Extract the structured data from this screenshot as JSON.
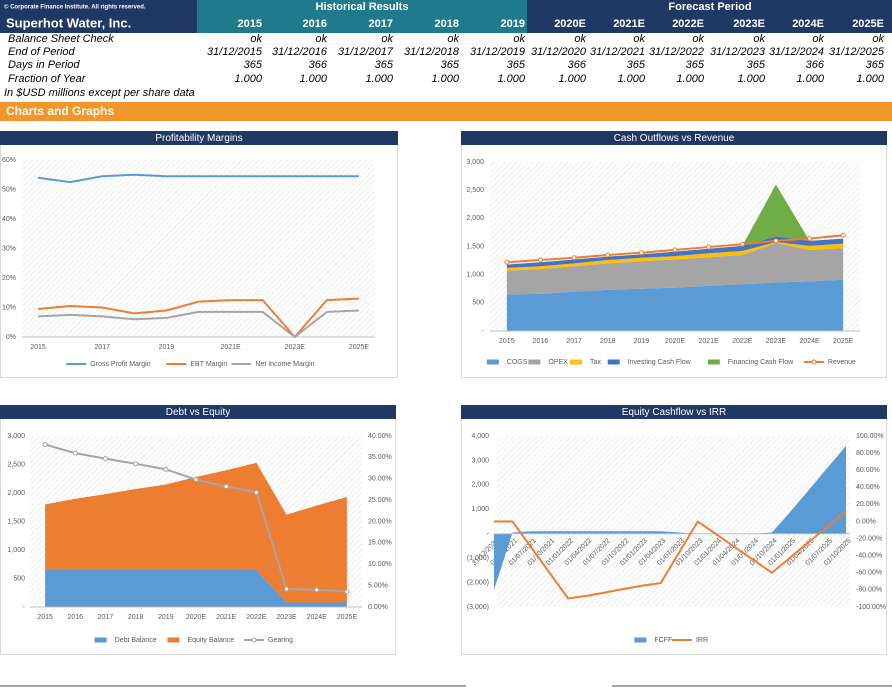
{
  "header": {
    "copyright": "© Corporate Finance Institute. All rights reserved.",
    "historical": "Historical Results",
    "forecast": "Forecast Period",
    "company": "Superhot Water, Inc.",
    "years": [
      "2015",
      "2016",
      "2017",
      "2018",
      "2019",
      "2020E",
      "2021E",
      "2022E",
      "2023E",
      "2024E",
      "2025E"
    ]
  },
  "table": {
    "rows": [
      {
        "label": "Balance Sheet Check",
        "cells": [
          "ok",
          "ok",
          "ok",
          "ok",
          "ok",
          "ok",
          "ok",
          "ok",
          "ok",
          "ok",
          "ok"
        ]
      },
      {
        "label": "End of Period",
        "cells": [
          "31/12/2015",
          "31/12/2016",
          "31/12/2017",
          "31/12/2018",
          "31/12/2019",
          "31/12/2020",
          "31/12/2021",
          "31/12/2022",
          "31/12/2023",
          "31/12/2024",
          "31/12/2025"
        ]
      },
      {
        "label": "Days in Period",
        "cells": [
          "365",
          "366",
          "365",
          "365",
          "365",
          "366",
          "365",
          "365",
          "365",
          "366",
          "365"
        ]
      },
      {
        "label": "Fraction of Year",
        "cells": [
          "1.000",
          "1.000",
          "1.000",
          "1.000",
          "1.000",
          "1.000",
          "1.000",
          "1.000",
          "1.000",
          "1.000",
          "1.000"
        ]
      }
    ],
    "note": "In $USD millions except per share data"
  },
  "section": "Charts and Graphs",
  "chart_data": [
    {
      "type": "line",
      "title": "Profitability Margins",
      "categories": [
        "2015",
        null,
        "2017",
        null,
        "2019",
        null,
        "2021E",
        null,
        "2023E",
        null,
        "2025E"
      ],
      "ylim": [
        0,
        60
      ],
      "yticks": [
        {
          "value": 0,
          "label": "0%"
        },
        {
          "value": 10,
          "label": "10%"
        },
        {
          "value": 20,
          "label": "20%"
        },
        {
          "value": 30,
          "label": "30%"
        },
        {
          "value": 40,
          "label": "40%"
        },
        {
          "value": 50,
          "label": "50%"
        },
        {
          "value": 60,
          "label": "60%"
        }
      ],
      "series": [
        {
          "name": "Gross Profit Margin",
          "color": "#5b9bd5",
          "values": [
            54,
            52.5,
            54.5,
            55,
            54.5,
            54.5,
            54.5,
            54.5,
            54.5,
            54.5,
            54.5
          ]
        },
        {
          "name": "EBT Margin",
          "color": "#ed7d31",
          "values": [
            9.5,
            10.5,
            10,
            8,
            9,
            12,
            12.5,
            12.5,
            0,
            12.5,
            13
          ]
        },
        {
          "name": "Net Income Margin",
          "color": "#a5a5a5",
          "values": [
            7,
            7.5,
            7,
            6,
            6.5,
            8.5,
            8.5,
            8.5,
            0,
            8.5,
            9
          ]
        }
      ]
    },
    {
      "type": "area",
      "stacked": true,
      "title": "Cash Outflows vs Revenue",
      "categories": [
        "2015",
        "2016",
        "2017",
        "2018",
        "2019",
        "2020E",
        "2021E",
        "2022E",
        "2023E",
        "2024E",
        "2025E"
      ],
      "ylim": [
        0,
        3000
      ],
      "yticks": [
        {
          "value": 0,
          "label": "-"
        },
        500,
        {
          "value": 1000,
          "label": "1,000"
        },
        {
          "value": 1500,
          "label": "1,500"
        },
        {
          "value": 2000,
          "label": "2,000"
        },
        {
          "value": 2500,
          "label": "2,500"
        },
        {
          "value": 3000,
          "label": "3,000"
        }
      ],
      "series": [
        {
          "name": "COGS",
          "color": "#5b9bd5",
          "values": [
            650,
            660,
            700,
            730,
            750,
            770,
            800,
            830,
            860,
            880,
            910
          ]
        },
        {
          "name": "OPEX",
          "color": "#a5a5a5",
          "values": [
            420,
            440,
            450,
            470,
            490,
            500,
            510,
            520,
            700,
            560,
            560
          ]
        },
        {
          "name": "Tax",
          "color": "#ffc000",
          "values": [
            50,
            50,
            50,
            60,
            60,
            60,
            70,
            70,
            20,
            70,
            80
          ]
        },
        {
          "name": "Investing Cash Flow",
          "color": "#4472c4",
          "values": [
            60,
            70,
            70,
            60,
            60,
            80,
            80,
            90,
            100,
            90,
            90
          ]
        },
        {
          "name": "Financing Cash Flow",
          "color": "#70ad47",
          "values": [
            0,
            0,
            0,
            0,
            0,
            0,
            0,
            0,
            920,
            0,
            0
          ]
        },
        {
          "name": "Revenue",
          "color": "#ed7d31",
          "type": "line",
          "markers": true,
          "values": [
            1220,
            1260,
            1300,
            1350,
            1390,
            1440,
            1490,
            1540,
            1600,
            1640,
            1700
          ]
        }
      ]
    },
    {
      "type": "area",
      "stacked": true,
      "title": "Debt vs Equity",
      "categories": [
        "2015",
        "2016",
        "2017",
        "2018",
        "2019",
        "2020E",
        "2021E",
        "2022E",
        "2023E",
        "2024E",
        "2025E"
      ],
      "ylim": [
        0,
        3000
      ],
      "yticks": [
        {
          "value": 0,
          "label": "-"
        },
        500,
        {
          "value": 1000,
          "label": "1,000"
        },
        {
          "value": 1500,
          "label": "1,500"
        },
        {
          "value": 2000,
          "label": "2,000"
        },
        {
          "value": 2500,
          "label": "2,500"
        },
        {
          "value": 3000,
          "label": "3,000"
        }
      ],
      "y2lim": [
        0,
        40
      ],
      "y2ticks": [
        {
          "value": 0,
          "label": "0.00%"
        },
        {
          "value": 5,
          "label": "5.00%"
        },
        {
          "value": 10,
          "label": "10.00%"
        },
        {
          "value": 15,
          "label": "15.00%"
        },
        {
          "value": 20,
          "label": "20.00%"
        },
        {
          "value": 25,
          "label": "25.00%"
        },
        {
          "value": 30,
          "label": "30.00%"
        },
        {
          "value": 35,
          "label": "35.00%"
        },
        {
          "value": 40,
          "label": "40.00%"
        }
      ],
      "series": [
        {
          "name": "Debt Balance",
          "color": "#5b9bd5",
          "values": [
            650,
            650,
            650,
            650,
            650,
            650,
            650,
            650,
            80,
            80,
            80
          ]
        },
        {
          "name": "Equity Balance",
          "color": "#ed7d31",
          "values": [
            1150,
            1250,
            1330,
            1420,
            1500,
            1630,
            1750,
            1880,
            1540,
            1700,
            1850
          ]
        },
        {
          "name": "Gearing",
          "color": "#a5a5a5",
          "type": "line",
          "axis": "y2",
          "markers": true,
          "values": [
            38,
            36,
            34.7,
            33.5,
            32.2,
            29.8,
            28.2,
            26.8,
            4.2,
            4,
            3.6
          ]
        }
      ]
    },
    {
      "type": "area",
      "title": "Equity Cashflow vs IRR",
      "categories": [
        "31/12/2020",
        "01/04/2021",
        "01/07/2021",
        "01/10/2021",
        "01/01/2022",
        "01/04/2022",
        "01/07/2022",
        "01/10/2022",
        "01/01/2023",
        "01/04/2023",
        "01/07/2023",
        "01/10/2023",
        "01/01/2024",
        "01/04/2024",
        "01/07/2024",
        "01/10/2024",
        "01/01/2025",
        "01/04/2025",
        "01/07/2025",
        "01/10/2025"
      ],
      "ylim": [
        -3000,
        4000
      ],
      "yticks": [
        {
          "value": -3000,
          "label": "(3,000)"
        },
        {
          "value": -2000,
          "label": "(2,000)"
        },
        {
          "value": -1000,
          "label": "(1,000)"
        },
        {
          "value": 0,
          "label": "-"
        },
        {
          "value": 1000,
          "label": "1,000"
        },
        {
          "value": 2000,
          "label": "2,000"
        },
        {
          "value": 3000,
          "label": "3,000"
        },
        {
          "value": 4000,
          "label": "4,000"
        }
      ],
      "y2lim": [
        -100,
        100
      ],
      "y2ticks": [
        {
          "value": -100,
          "label": "-100.00%"
        },
        {
          "value": -80,
          "label": "-80.00%"
        },
        {
          "value": -60,
          "label": "-60.00%"
        },
        {
          "value": -40,
          "label": "-40.00%"
        },
        {
          "value": -20,
          "label": "-20.00%"
        },
        {
          "value": 0,
          "label": "0.00%"
        },
        {
          "value": 20,
          "label": "20.00%"
        },
        {
          "value": 40,
          "label": "40.00%"
        },
        {
          "value": 60,
          "label": "60.00%"
        },
        {
          "value": 80,
          "label": "80.00%"
        },
        {
          "value": 100,
          "label": "100.00%"
        }
      ],
      "series": [
        {
          "name": "FCFF",
          "color": "#5b9bd5",
          "values": [
            -2300,
            50,
            100,
            100,
            100,
            100,
            100,
            100,
            100,
            100,
            50,
            0,
            0,
            0,
            0,
            50,
            900,
            1800,
            2700,
            3600
          ]
        },
        {
          "name": "IRR",
          "color": "#ed7d31",
          "type": "line",
          "axis": "y2",
          "values": [
            0,
            0,
            -30,
            -60,
            -90,
            -87,
            -83,
            -79,
            -75,
            -72,
            -36,
            0,
            -15,
            -30,
            -45,
            -60,
            -42,
            -24,
            -6,
            12
          ]
        }
      ]
    }
  ]
}
